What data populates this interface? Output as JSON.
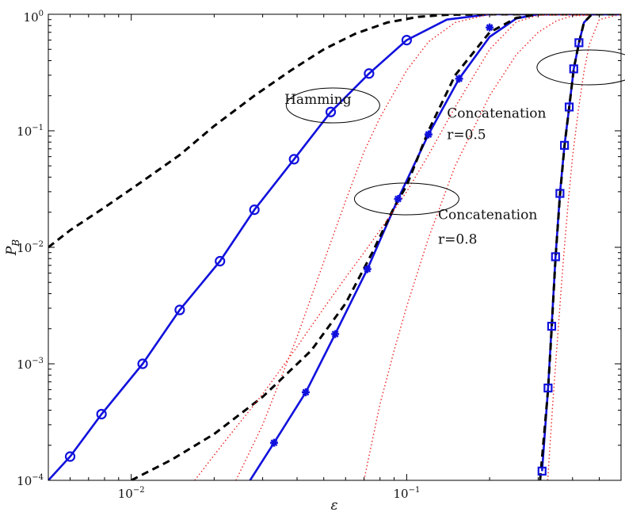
{
  "chart_data": {
    "type": "line",
    "xscale": "log",
    "yscale": "log",
    "xlim": [
      0.005,
      0.6
    ],
    "ylim": [
      0.0001,
      1
    ],
    "xlabel": "ε",
    "ylabel": "P_B",
    "x_ticks": [
      {
        "value": 0.01,
        "base": "10",
        "exp": "−2"
      },
      {
        "value": 0.1,
        "base": "10",
        "exp": "−1"
      }
    ],
    "y_ticks": [
      {
        "value": 0.0001,
        "base": "10",
        "exp": "−4"
      },
      {
        "value": 0.001,
        "base": "10",
        "exp": "−3"
      },
      {
        "value": 0.01,
        "base": "10",
        "exp": "−2"
      },
      {
        "value": 0.1,
        "base": "10",
        "exp": "−1"
      },
      {
        "value": 1,
        "base": "10",
        "exp": "0"
      }
    ],
    "grid": false,
    "legend": "none",
    "colors": {
      "blue": "#1111dd",
      "black": "#000000",
      "red": "#ee2222"
    },
    "series": [
      {
        "style": "solid-blue-circle",
        "x": [
          0.005,
          0.006,
          0.0078,
          0.011,
          0.015,
          0.021,
          0.028,
          0.039,
          0.053,
          0.073,
          0.1,
          0.14,
          0.2,
          0.3,
          0.6
        ],
        "y": [
          0.0001,
          0.00016,
          0.00037,
          0.001,
          0.0029,
          0.0076,
          0.021,
          0.057,
          0.145,
          0.31,
          0.6,
          0.9,
          1,
          1,
          1
        ],
        "markers": [
          0.006,
          0.0078,
          0.011,
          0.015,
          0.021,
          0.028,
          0.039,
          0.053,
          0.073,
          0.1
        ]
      },
      {
        "style": "dashed-black",
        "x": [
          0.005,
          0.006,
          0.008,
          0.011,
          0.015,
          0.02,
          0.028,
          0.038,
          0.05,
          0.065,
          0.085,
          0.11,
          0.14,
          0.2,
          0.3,
          0.6
        ],
        "y": [
          0.01,
          0.014,
          0.022,
          0.037,
          0.062,
          0.11,
          0.2,
          0.33,
          0.5,
          0.68,
          0.85,
          0.95,
          0.99,
          1,
          1,
          1
        ]
      },
      {
        "style": "dotted-red",
        "x": [
          0.024,
          0.03,
          0.04,
          0.05,
          0.06,
          0.07,
          0.08,
          0.1,
          0.12,
          0.15,
          0.2,
          0.6
        ],
        "y": [
          0.0001,
          0.0003,
          0.0017,
          0.0075,
          0.025,
          0.066,
          0.13,
          0.33,
          0.58,
          0.85,
          1,
          1
        ]
      },
      {
        "style": "solid-blue-star",
        "x": [
          0.027,
          0.033,
          0.043,
          0.055,
          0.072,
          0.093,
          0.12,
          0.155,
          0.2,
          0.25,
          0.3,
          0.6
        ],
        "y": [
          0.0001,
          0.00021,
          0.00057,
          0.0018,
          0.0065,
          0.026,
          0.093,
          0.28,
          0.64,
          0.92,
          1,
          1
        ],
        "markers": [
          0.033,
          0.043,
          0.055,
          0.072,
          0.093,
          0.12,
          0.155
        ]
      },
      {
        "style": "asterisk-blue",
        "x": [
          0.2
        ],
        "y": [
          0.77
        ]
      },
      {
        "style": "dashed-black",
        "x": [
          0.01,
          0.014,
          0.02,
          0.03,
          0.045,
          0.06,
          0.075,
          0.09,
          0.1,
          0.12,
          0.15,
          0.2,
          0.25,
          0.3,
          0.6
        ],
        "y": [
          0.0001,
          0.00015,
          0.00025,
          0.00052,
          0.0013,
          0.0033,
          0.009,
          0.022,
          0.034,
          0.1,
          0.3,
          0.7,
          0.93,
          1,
          1
        ]
      },
      {
        "style": "dotted-red",
        "x": [
          0.017,
          0.022,
          0.03,
          0.04,
          0.05,
          0.06,
          0.07,
          0.08,
          0.1,
          0.12,
          0.15,
          0.2,
          0.25,
          0.3,
          0.6
        ],
        "y": [
          0.0001,
          0.00022,
          0.00055,
          0.0014,
          0.003,
          0.0055,
          0.009,
          0.014,
          0.03,
          0.062,
          0.16,
          0.5,
          0.86,
          0.98,
          1
        ]
      },
      {
        "style": "dotted-red",
        "x": [
          0.07,
          0.075,
          0.08,
          0.09,
          0.1,
          0.12,
          0.15,
          0.2,
          0.25,
          0.3,
          0.35,
          0.4,
          0.6
        ],
        "y": [
          0.0001,
          0.00022,
          0.00045,
          0.0013,
          0.0031,
          0.012,
          0.05,
          0.2,
          0.45,
          0.7,
          0.88,
          0.97,
          1
        ]
      },
      {
        "style": "solid-blue-square",
        "x": [
          0.31,
          0.326,
          0.336,
          0.347,
          0.36,
          0.374,
          0.389,
          0.404,
          0.422,
          0.44,
          0.47,
          0.6
        ],
        "y": [
          0.00012,
          0.00062,
          0.0021,
          0.0083,
          0.029,
          0.075,
          0.16,
          0.34,
          0.57,
          0.85,
          1,
          1
        ],
        "markers": [
          0.326,
          0.336,
          0.347,
          0.36,
          0.374,
          0.389,
          0.404,
          0.422
        ]
      },
      {
        "style": "square-blue",
        "x": [
          0.31
        ],
        "y": [
          0.00012
        ]
      },
      {
        "style": "dashed-black",
        "x": [
          0.305,
          0.326,
          0.336,
          0.347,
          0.36,
          0.374,
          0.389,
          0.404,
          0.422,
          0.44,
          0.47,
          0.6
        ],
        "y": [
          0.0001,
          0.0006,
          0.002,
          0.0081,
          0.028,
          0.074,
          0.16,
          0.34,
          0.57,
          0.85,
          1,
          1
        ]
      },
      {
        "style": "dotted-red",
        "x": [
          0.325,
          0.34,
          0.355,
          0.37,
          0.385,
          0.4,
          0.42,
          0.44,
          0.46,
          0.5,
          0.6
        ],
        "y": [
          0.0001,
          0.0005,
          0.002,
          0.0075,
          0.023,
          0.06,
          0.15,
          0.32,
          0.55,
          0.9,
          1
        ]
      }
    ],
    "annotations": [
      {
        "name": "hamming",
        "text": "Hamming",
        "x": 0.036,
        "y": 0.17
      },
      {
        "name": "concat-05",
        "text": "Concatenation",
        "x": 0.14,
        "y": 0.13
      },
      {
        "name": "concat-05-r",
        "text": "r=0.5",
        "x": 0.14,
        "y": 0.085
      },
      {
        "name": "concat-08",
        "text": "Concatenation",
        "x": 0.13,
        "y": 0.0175
      },
      {
        "name": "concat-08-r",
        "text": "r=0.8",
        "x": 0.13,
        "y": 0.0107
      }
    ],
    "ellipses": [
      {
        "name": "hamming",
        "x": 0.054,
        "y": 0.165
      },
      {
        "name": "concat-08",
        "x": 0.1,
        "y": 0.026
      },
      {
        "name": "concat-05",
        "x": 0.46,
        "y": 0.35
      }
    ]
  }
}
